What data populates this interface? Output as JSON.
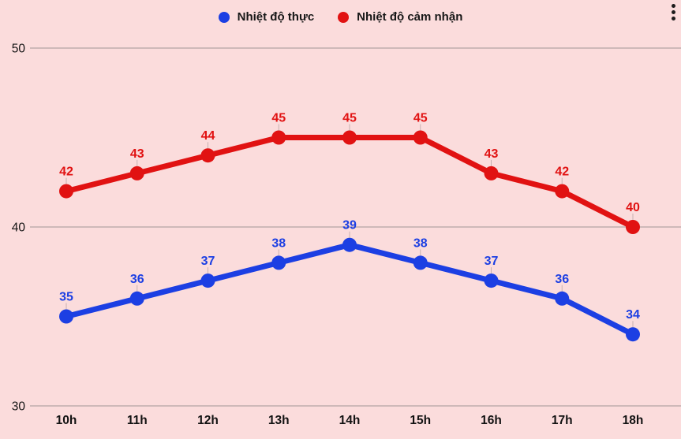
{
  "legend": {
    "items": [
      {
        "label": "Nhiệt độ thực",
        "color": "#1c3fe3",
        "icon": "blue-dot-icon"
      },
      {
        "label": "Nhiệt độ cảm nhận",
        "color": "#e11212",
        "icon": "red-dot-icon"
      }
    ]
  },
  "menu": {
    "icon": "kebab-menu-icon"
  },
  "colors": {
    "background": "#fbdcdc",
    "gridline": "#bfadad",
    "axis_text": "#141414",
    "leader_line": "#9e8f8f"
  },
  "chart_data": {
    "type": "line",
    "categories": [
      "10h",
      "11h",
      "12h",
      "13h",
      "14h",
      "15h",
      "16h",
      "17h",
      "18h"
    ],
    "series": [
      {
        "name": "Nhiệt độ thực",
        "color": "#1c3fe3",
        "values": [
          35,
          36,
          37,
          38,
          39,
          38,
          37,
          36,
          34
        ]
      },
      {
        "name": "Nhiệt độ cảm nhận",
        "color": "#e11212",
        "values": [
          42,
          43,
          44,
          45,
          45,
          45,
          43,
          42,
          40
        ]
      }
    ],
    "y_ticks": [
      50,
      40,
      30
    ],
    "ylim": [
      30,
      50
    ],
    "xlabel": "",
    "ylabel": "",
    "grid": "horizontal",
    "legend_position": "top-center",
    "value_labels": true
  }
}
